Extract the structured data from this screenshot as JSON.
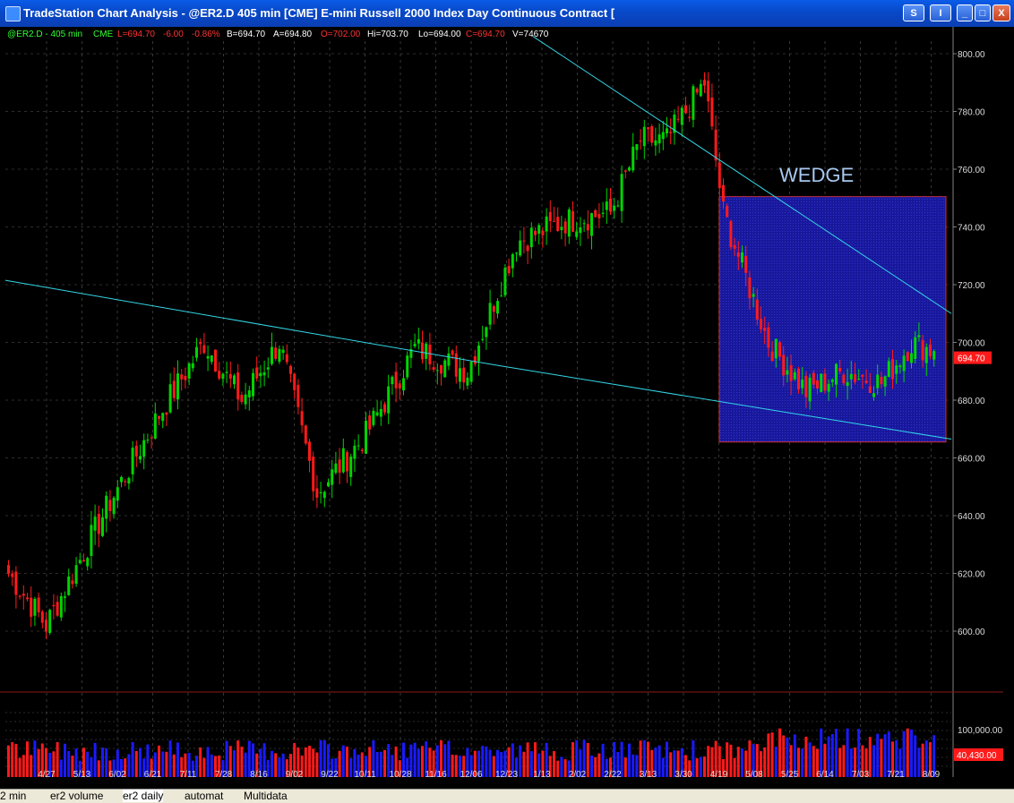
{
  "window": {
    "title": "TradeStation Chart Analysis - @ER2.D  405 min  [CME] E-mini Russell 2000 Index Day Continuous Contract [",
    "buttons": {
      "symbol_label": "S",
      "indicator_label": "I",
      "minimize_label": "_",
      "maximize_label": "□",
      "close_label": "X"
    }
  },
  "status": {
    "symbol": "@ER2.D - 405 min",
    "exchange": "CME",
    "last": "L=694.70",
    "change": "-6.00",
    "change_pct": "-0.86%",
    "bid": "B=694.70",
    "ask": "A=694.80",
    "open": "O=702.00",
    "high": "Hi=703.70",
    "low": "Lo=694.00",
    "close": "C=694.70",
    "volume": "V=74670"
  },
  "chart_data": {
    "type": "candlestick",
    "price_axis": {
      "min": 580,
      "max": 805,
      "ticks": [
        "800.00",
        "780.00",
        "760.00",
        "740.00",
        "720.00",
        "700.00",
        "680.00",
        "660.00",
        "640.00",
        "620.00",
        "600.00"
      ]
    },
    "last_price_label": "694.70",
    "x_labels": [
      "4/27",
      "5/13",
      "6/02",
      "6/21",
      "7/11",
      "7/28",
      "8/16",
      "9/02",
      "9/22",
      "10/11",
      "10/28",
      "11/16",
      "12/06",
      "12/23",
      "1/13",
      "2/02",
      "2/22",
      "3/13",
      "3/30",
      "4/19",
      "5/08",
      "5/25",
      "6/14",
      "7/03",
      "7/21",
      "8/09"
    ],
    "anchors": [
      [
        0,
        620
      ],
      [
        10,
        602
      ],
      [
        25,
        640
      ],
      [
        40,
        675
      ],
      [
        52,
        700
      ],
      [
        62,
        680
      ],
      [
        72,
        700
      ],
      [
        82,
        648
      ],
      [
        95,
        668
      ],
      [
        108,
        698
      ],
      [
        122,
        690
      ],
      [
        135,
        735
      ],
      [
        148,
        742
      ],
      [
        160,
        745
      ],
      [
        168,
        770
      ],
      [
        175,
        770
      ],
      [
        185,
        790
      ],
      [
        190,
        745
      ],
      [
        202,
        700
      ],
      [
        212,
        683
      ],
      [
        222,
        690
      ],
      [
        232,
        686
      ],
      [
        240,
        700
      ],
      [
        246,
        697
      ]
    ],
    "annotation": "WEDGE",
    "volume_axis": {
      "ticks": [
        "100,000.00"
      ],
      "last_label": "40,430.00"
    },
    "colors": {
      "up": "#00d400",
      "down": "#ff1a1a",
      "trendline": "#33d6e6",
      "wedge_fill": "#1a1aa8",
      "wedge_border": "#d03030",
      "grid": "#5a5a5a",
      "axis_text": "#dcdcdc"
    }
  },
  "tabs": [
    {
      "label": "2 min"
    },
    {
      "label": "er2 volume"
    },
    {
      "label": "er2 daily"
    },
    {
      "label": "automat"
    },
    {
      "label": "Multidata"
    }
  ]
}
